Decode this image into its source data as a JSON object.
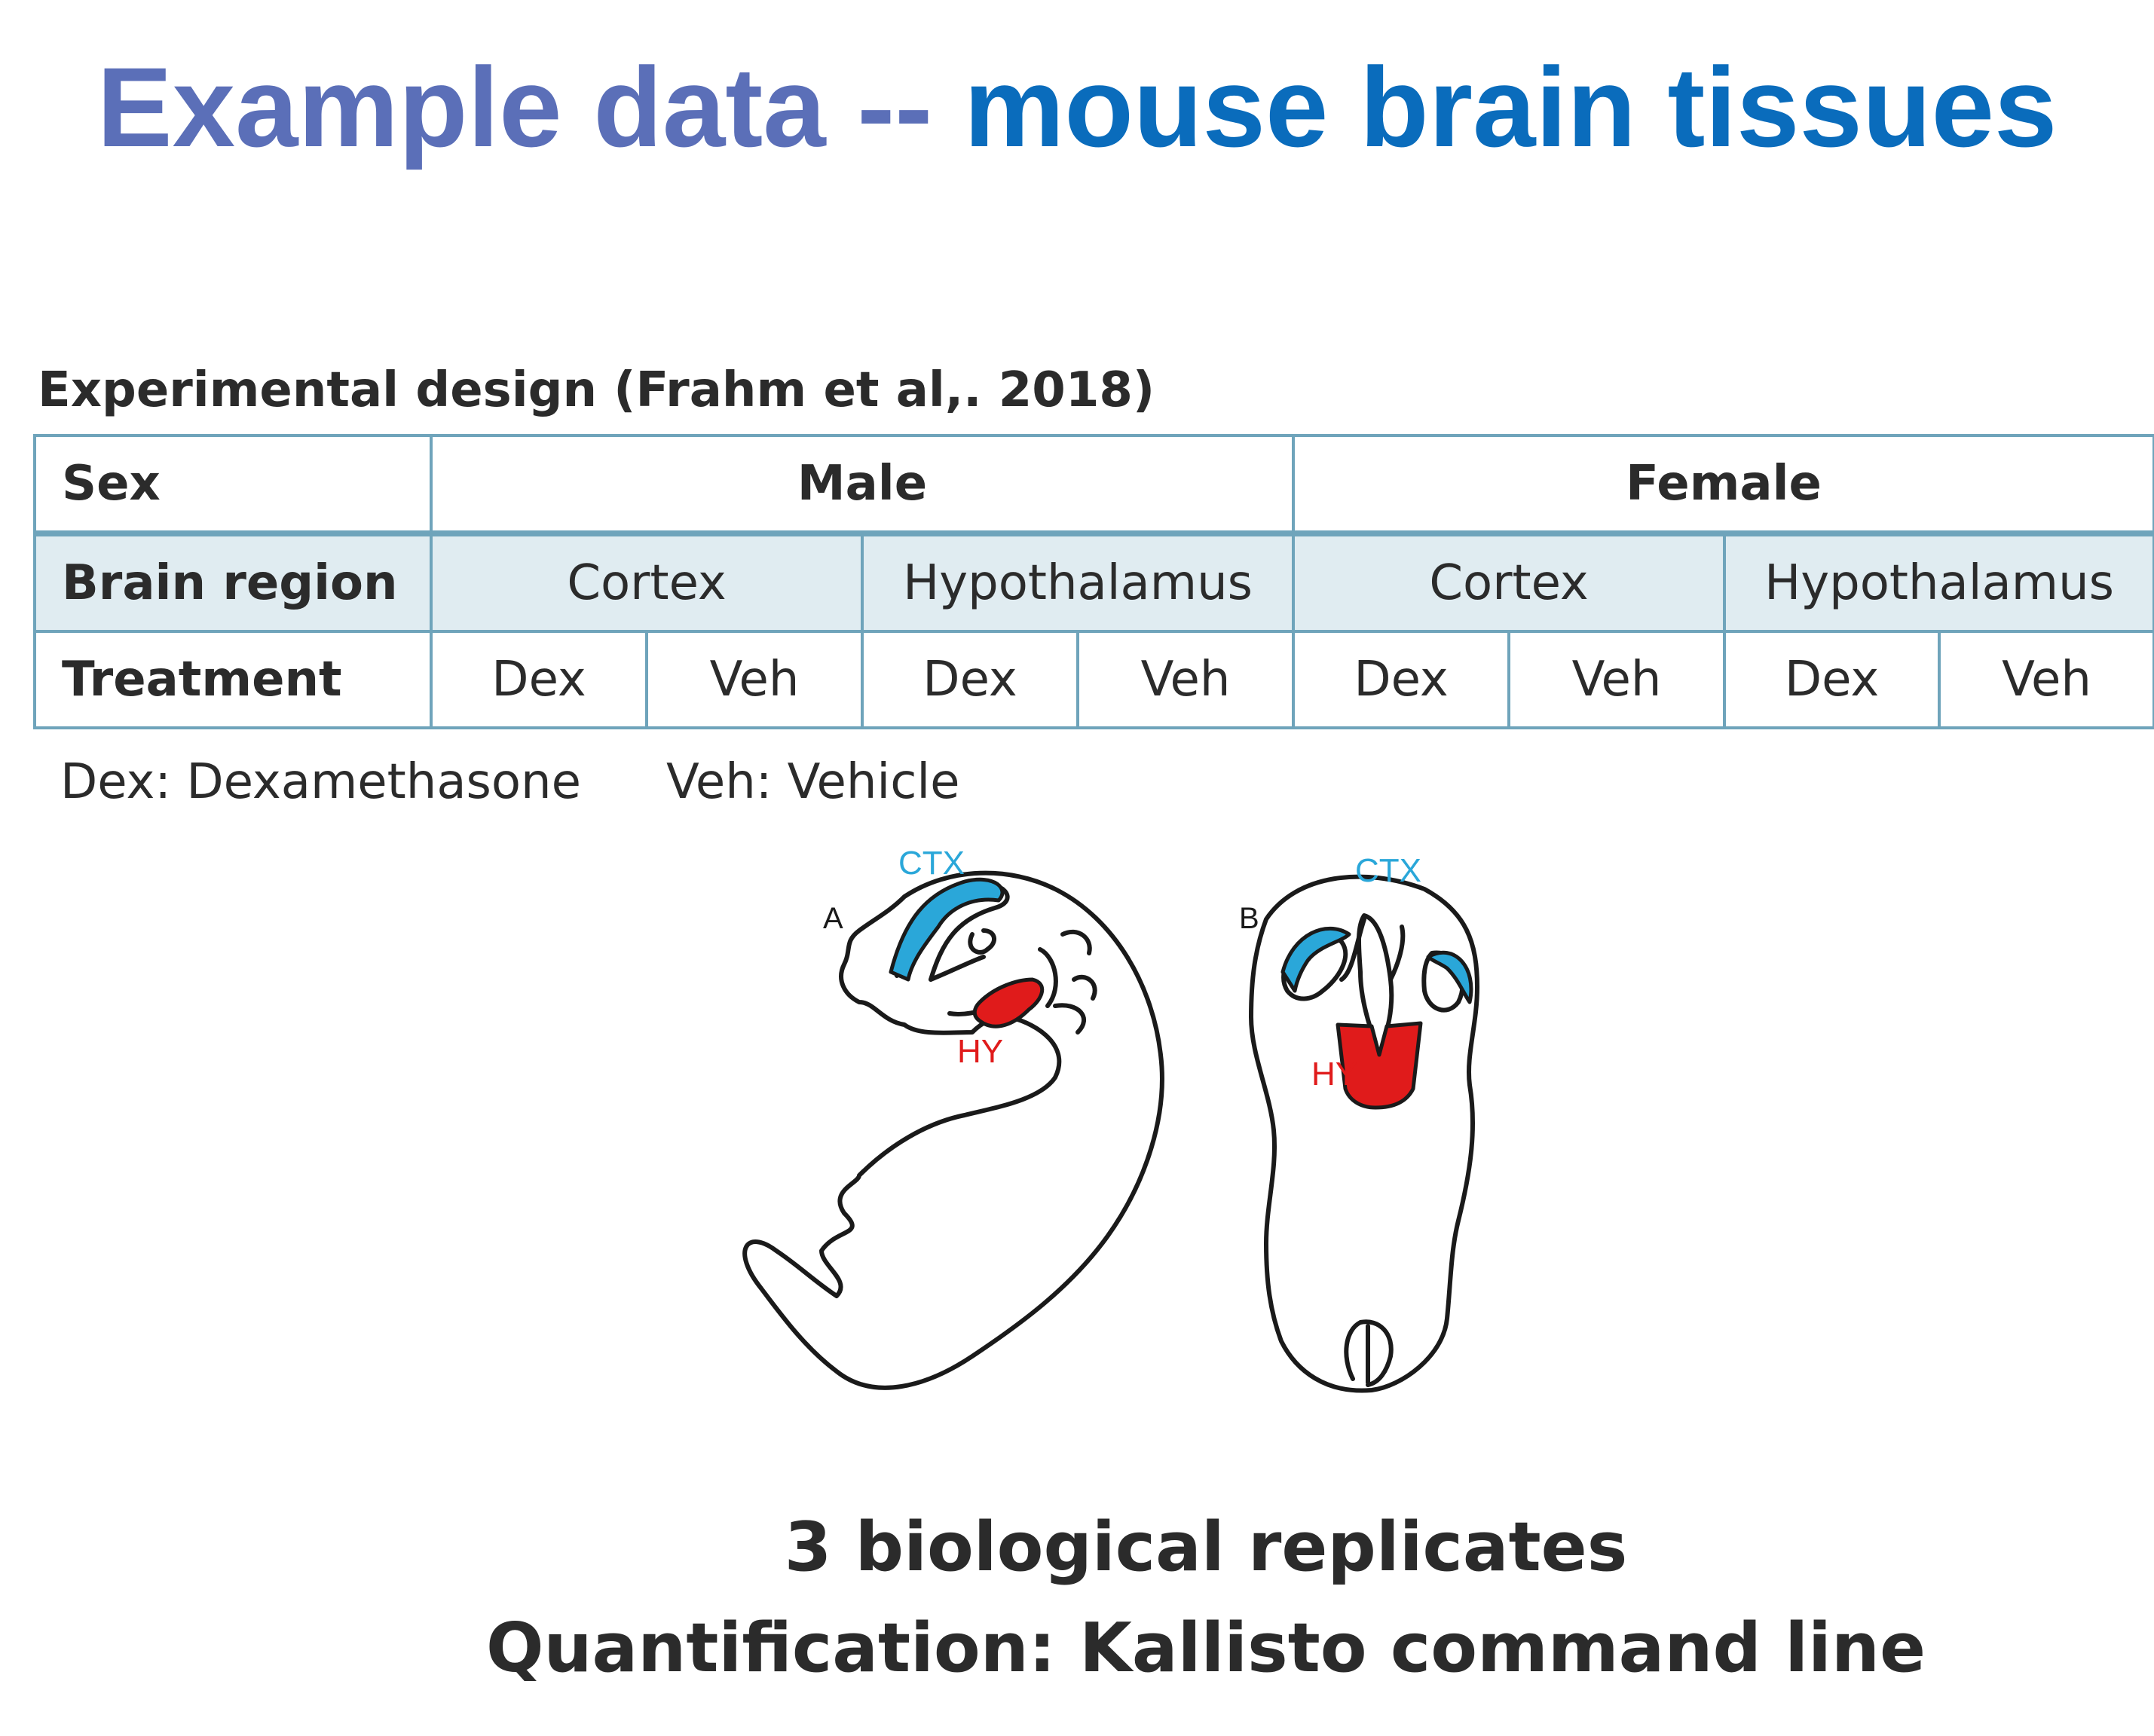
{
  "slide": {
    "title_part_1": "Example data -- ",
    "title_part_2": "mouse brain tissues",
    "title_colors": [
      "#5b6fb8",
      "#0a6cbc"
    ]
  },
  "design": {
    "heading": "Experimental design (Frahm et al,. 2018)",
    "table": {
      "sex_row": {
        "header": "Sex",
        "cells": [
          "Male",
          "Female"
        ]
      },
      "region_row": {
        "header": "Brain region",
        "cells": [
          "Cortex",
          "Hypothalamus",
          "Cortex",
          "Hypothalamus"
        ]
      },
      "treatment_row": {
        "header": "Treatment",
        "cells": [
          "Dex",
          "Veh",
          "Dex",
          "Veh",
          "Dex",
          "Veh",
          "Dex",
          "Veh"
        ]
      }
    },
    "legend": {
      "dex": "Dex: Dexamethasone",
      "veh": "Veh: Vehicle"
    }
  },
  "illustration": {
    "panel_a_label": "A",
    "panel_b_label": "B",
    "ctx_label": "CTX",
    "hy_label": "HY",
    "ctx_color": "#2aa7d9",
    "hy_color": "#e01b1b"
  },
  "footer": {
    "line_1": "3 biological replicates",
    "line_2": "Quantification: Kallisto command line"
  }
}
